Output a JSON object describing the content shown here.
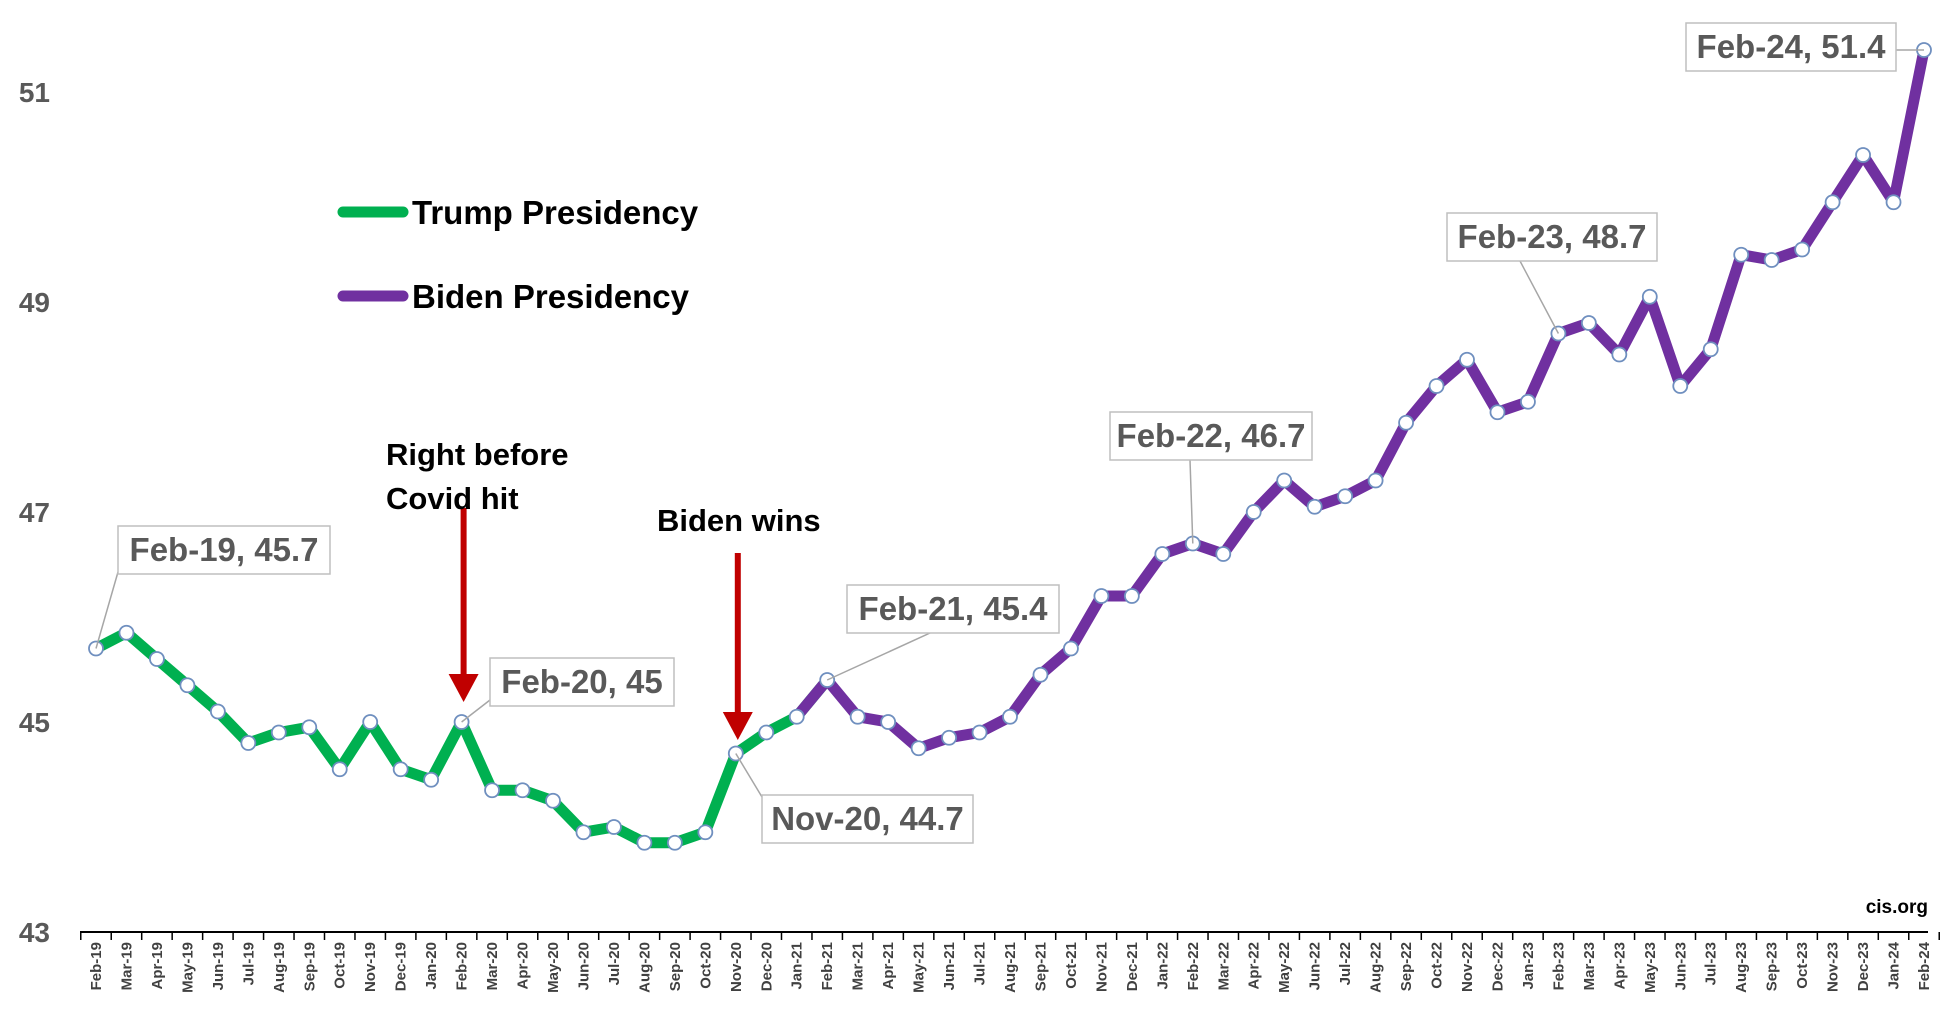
{
  "chart_data": {
    "type": "line",
    "categories": [
      "Feb-19",
      "Mar-19",
      "Apr-19",
      "May-19",
      "Jun-19",
      "Jul-19",
      "Aug-19",
      "Sep-19",
      "Oct-19",
      "Nov-19",
      "Dec-19",
      "Jan-20",
      "Feb-20",
      "Mar-20",
      "Apr-20",
      "May-20",
      "Jun-20",
      "Jul-20",
      "Aug-20",
      "Sep-20",
      "Oct-20",
      "Nov-20",
      "Dec-20",
      "Jan-21",
      "Feb-21",
      "Mar-21",
      "Apr-21",
      "May-21",
      "Jun-21",
      "Jul-21",
      "Aug-21",
      "Sep-21",
      "Oct-21",
      "Nov-21",
      "Dec-21",
      "Jan-22",
      "Feb-22",
      "Mar-22",
      "Apr-22",
      "May-22",
      "Jun-22",
      "Jul-22",
      "Aug-22",
      "Sep-22",
      "Oct-22",
      "Nov-22",
      "Dec-22",
      "Jan-23",
      "Feb-23",
      "Mar-23",
      "Apr-23",
      "May-23",
      "Jun-23",
      "Jul-23",
      "Aug-23",
      "Sep-23",
      "Oct-23",
      "Nov-23",
      "Dec-23",
      "Jan-24",
      "Feb-24"
    ],
    "values": [
      45.7,
      45.85,
      45.6,
      45.35,
      45.1,
      44.8,
      44.9,
      44.95,
      44.55,
      45.0,
      44.55,
      44.45,
      45.0,
      44.35,
      44.35,
      44.25,
      43.95,
      44.0,
      43.85,
      43.85,
      43.95,
      44.7,
      44.9,
      45.05,
      45.4,
      45.05,
      45.0,
      44.75,
      44.85,
      44.9,
      45.05,
      45.45,
      45.7,
      46.2,
      46.2,
      46.6,
      46.7,
      46.6,
      47.0,
      47.3,
      47.05,
      47.15,
      47.3,
      47.85,
      48.2,
      48.45,
      47.95,
      48.05,
      48.7,
      48.8,
      48.5,
      49.05,
      48.2,
      48.55,
      49.45,
      49.4,
      49.5,
      49.95,
      50.4,
      49.95,
      51.4
    ],
    "series": [
      {
        "name": "Trump Presidency",
        "start_index": 0,
        "end_index": 24,
        "color": "#00b050"
      },
      {
        "name": "Biden Presidency",
        "start_index": 23,
        "end_index": 60,
        "color": "#7030a0"
      }
    ],
    "yticks": [
      "43",
      "45",
      "47",
      "49",
      "51"
    ],
    "ylim": [
      43,
      51.8
    ],
    "legend_placement": "top-left",
    "grid": false,
    "callouts": [
      {
        "index": 0,
        "text": "Feb-19,  45.7"
      },
      {
        "index": 12,
        "text": "Feb-20,  45"
      },
      {
        "index": 21,
        "text": "Nov-20,  44.7"
      },
      {
        "index": 24,
        "text": "Feb-21,  45.4"
      },
      {
        "index": 36,
        "text": "Feb-22,  46.7"
      },
      {
        "index": 48,
        "text": "Feb-23,  48.7"
      },
      {
        "index": 60,
        "text": "Feb-24,  51.4"
      }
    ],
    "annotations": [
      {
        "index": 12,
        "lines": [
          "Right before",
          "Covid hit"
        ],
        "arrow_color": "#c00000"
      },
      {
        "index": 21,
        "lines": [
          "Biden wins"
        ],
        "arrow_color": "#c00000"
      }
    ],
    "source": "cis.org"
  }
}
